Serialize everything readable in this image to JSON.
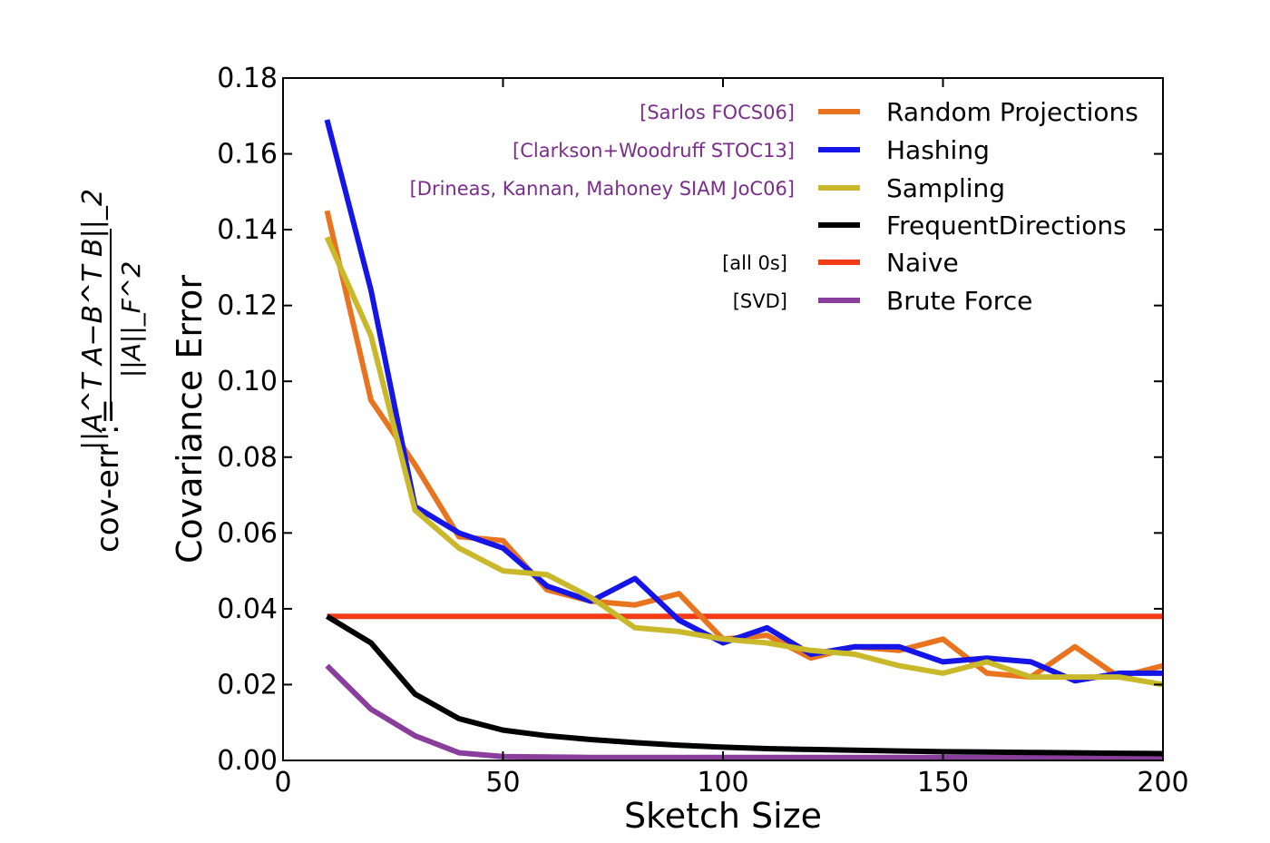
{
  "chart_data": {
    "type": "line",
    "xlabel": "Sketch Size",
    "ylabel": "Covariance Error",
    "side_label": {
      "prefix": "cov-err :=",
      "numerator": "||A^T A−B^T B||_2",
      "denominator": "||A||_F^2"
    },
    "xlim": [
      0,
      200
    ],
    "ylim": [
      0,
      0.18
    ],
    "x_ticks": [
      "0",
      "50",
      "100",
      "150",
      "200"
    ],
    "y_ticks": [
      "0.00",
      "0.02",
      "0.04",
      "0.06",
      "0.08",
      "0.10",
      "0.12",
      "0.14",
      "0.16",
      "0.18"
    ],
    "grid": false,
    "legend_position": "top-right",
    "x": [
      10,
      20,
      30,
      40,
      50,
      60,
      70,
      80,
      90,
      100,
      110,
      120,
      130,
      140,
      150,
      160,
      170,
      180,
      190,
      200
    ],
    "series": [
      {
        "name": "Random Projections",
        "citation": "[Sarlos FOCS06]",
        "color": "#e8741f",
        "values": [
          0.145,
          0.095,
          0.078,
          0.059,
          0.058,
          0.045,
          0.042,
          0.041,
          0.044,
          0.032,
          0.033,
          0.027,
          0.03,
          0.029,
          0.032,
          0.023,
          0.022,
          0.03,
          0.022,
          0.025
        ]
      },
      {
        "name": "Hashing",
        "citation": "[Clarkson+Woodruff STOC13]",
        "color": "#1515e8",
        "values": [
          0.169,
          0.124,
          0.067,
          0.06,
          0.056,
          0.046,
          0.042,
          0.048,
          0.037,
          0.031,
          0.035,
          0.028,
          0.03,
          0.03,
          0.026,
          0.027,
          0.026,
          0.021,
          0.023,
          0.023
        ]
      },
      {
        "name": "Sampling",
        "citation": "[Drineas, Kannan, Mahoney SIAM JoC06]",
        "color": "#c9b829",
        "values": [
          0.138,
          0.112,
          0.066,
          0.056,
          0.05,
          0.049,
          0.043,
          0.035,
          0.034,
          0.032,
          0.031,
          0.029,
          0.028,
          0.025,
          0.023,
          0.026,
          0.022,
          0.022,
          0.022,
          0.02
        ]
      },
      {
        "name": "FrequentDirections",
        "citation": "",
        "color": "#000000",
        "values": [
          0.038,
          0.031,
          0.0175,
          0.011,
          0.008,
          0.0065,
          0.0055,
          0.0047,
          0.004,
          0.0035,
          0.0031,
          0.0029,
          0.0027,
          0.0025,
          0.0023,
          0.0022,
          0.0021,
          0.002,
          0.0019,
          0.0018
        ]
      },
      {
        "name": "Naive",
        "citation": "[all 0s]",
        "color": "#f23c18",
        "values": [
          0.038,
          0.038,
          0.038,
          0.038,
          0.038,
          0.038,
          0.038,
          0.038,
          0.038,
          0.038,
          0.038,
          0.038,
          0.038,
          0.038,
          0.038,
          0.038,
          0.038,
          0.038,
          0.038,
          0.038
        ]
      },
      {
        "name": "Brute Force",
        "citation": "[SVD]",
        "color": "#8a3e9b",
        "values": [
          0.025,
          0.0135,
          0.0065,
          0.002,
          0.001,
          0.0009,
          0.0008,
          0.0008,
          0.0008,
          0.0008,
          0.0008,
          0.0008,
          0.0008,
          0.0008,
          0.0008,
          0.0008,
          0.0008,
          0.0008,
          0.0008,
          0.0008
        ]
      }
    ],
    "citation_colors": {
      "purple": "#7b2d8c",
      "black": "#000000"
    }
  }
}
